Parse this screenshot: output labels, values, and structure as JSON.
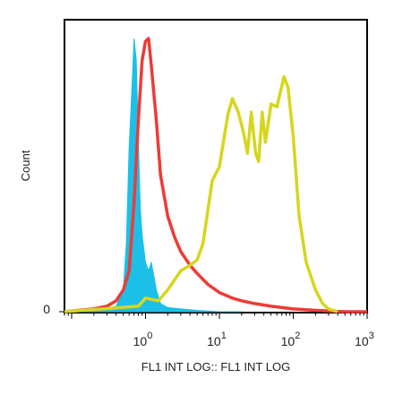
{
  "chart_data": {
    "type": "area",
    "title": "",
    "xlabel": "FL1 INT LOG:: FL1 INT LOG",
    "ylabel": "Count",
    "xscale": "log",
    "xlim": [
      0.08,
      1000
    ],
    "ylim": [
      0,
      100
    ],
    "grid": false,
    "legend": "none",
    "y_ticks": [
      {
        "value": 0,
        "label": "0"
      }
    ],
    "x_ticks": [
      {
        "value": 1,
        "base": "10",
        "exp": "0"
      },
      {
        "value": 10,
        "base": "10",
        "exp": "1"
      },
      {
        "value": 100,
        "base": "10",
        "exp": "2"
      },
      {
        "value": 1000,
        "base": "10",
        "exp": "3"
      }
    ],
    "series": [
      {
        "style": "filled",
        "color": "#1cbfe8",
        "x": [
          0.08,
          0.3,
          0.4,
          0.5,
          0.55,
          0.6,
          0.65,
          0.7,
          0.75,
          0.8,
          0.85,
          0.9,
          1.0,
          1.1,
          1.2,
          1.4,
          1.6,
          2.0,
          3.0,
          5.0,
          10.0,
          20.0
        ],
        "y": [
          0,
          1,
          2,
          8,
          25,
          60,
          80,
          100,
          92,
          62,
          38,
          28,
          18,
          15,
          18,
          8,
          3,
          1.5,
          1,
          0.5,
          0,
          0
        ]
      },
      {
        "style": "line",
        "color": "#ee3b36",
        "x": [
          0.08,
          0.2,
          0.3,
          0.4,
          0.5,
          0.6,
          0.7,
          0.8,
          0.9,
          1.0,
          1.1,
          1.2,
          1.4,
          1.6,
          2.0,
          2.5,
          3.0,
          4.0,
          5.0,
          7.0,
          10.0,
          15.0,
          20.0,
          30.0,
          50.0,
          100.0,
          200.0,
          500.0,
          1000.0
        ],
        "y": [
          0,
          1,
          2,
          4,
          8,
          15,
          40,
          70,
          92,
          99,
          100,
          90,
          70,
          50,
          35,
          27,
          22,
          17,
          14,
          10,
          7,
          5,
          4,
          3,
          2,
          1,
          0.5,
          0,
          0
        ]
      },
      {
        "style": "line",
        "color": "#d6d61e",
        "x": [
          0.08,
          0.8,
          1.0,
          1.5,
          2.0,
          3.0,
          4.0,
          5.0,
          6.0,
          8.0,
          10.0,
          13.0,
          15.0,
          18.0,
          21.0,
          24.0,
          27.0,
          31.0,
          34.0,
          38.0,
          42.0,
          50.0,
          60.0,
          75.0,
          85.0,
          100.0,
          120.0,
          150.0,
          200.0,
          250.0,
          300.0,
          400.0
        ],
        "y": [
          0,
          2,
          5,
          4,
          8,
          15,
          17,
          19,
          25,
          48,
          53,
          72,
          78,
          73,
          66,
          58,
          73,
          58,
          55,
          73,
          62,
          76,
          75,
          86,
          82,
          64,
          35,
          18,
          8,
          3,
          1,
          0
        ]
      }
    ]
  }
}
